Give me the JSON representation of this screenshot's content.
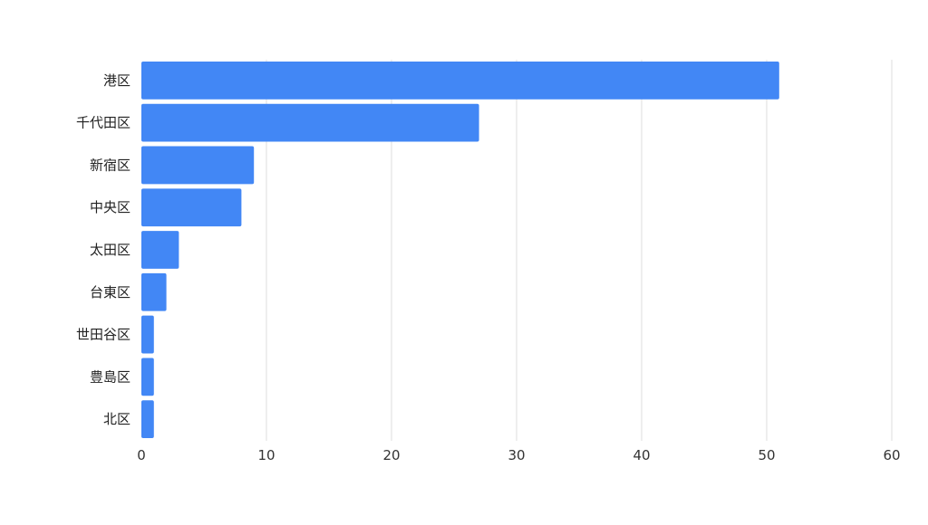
{
  "chart_data": {
    "type": "bar",
    "orientation": "horizontal",
    "title": "",
    "xlabel": "",
    "ylabel": "",
    "categories": [
      "港区",
      "千代田区",
      "新宿区",
      "中央区",
      "太田区",
      "台東区",
      "世田谷区",
      "豊島区",
      "北区"
    ],
    "values": [
      51,
      27,
      9,
      8,
      3,
      2,
      1,
      1,
      1
    ],
    "xlim": [
      0,
      60
    ],
    "xticks": [
      0,
      10,
      20,
      30,
      40,
      50,
      60
    ],
    "grid": true,
    "legend": "none",
    "bar_color": "#4287f5",
    "gridline_color": "#dddddd"
  }
}
